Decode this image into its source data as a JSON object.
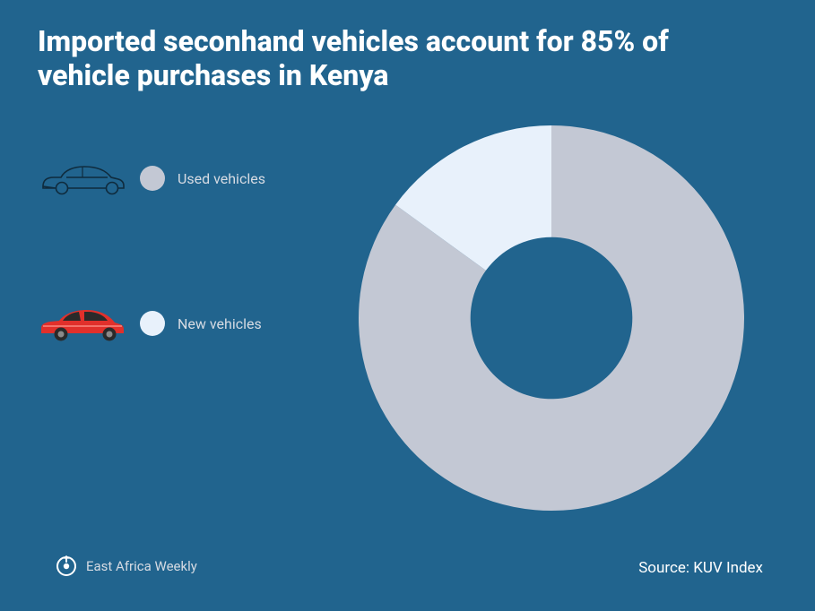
{
  "title": "Imported seconhand vehicles account for 85% of vehicle purchases in Kenya",
  "legend": {
    "used": {
      "label": "Used vehicles",
      "swatch_color": "#c3c8d4"
    },
    "new": {
      "label": "New vehicles",
      "swatch_color": "#e8f1fb"
    }
  },
  "chart": {
    "type": "donut",
    "background_color": "#21648e",
    "slices": [
      {
        "name": "used",
        "value": 85,
        "color": "#c3c8d4"
      },
      {
        "name": "new",
        "value": 15,
        "color": "#e8f1fb"
      }
    ],
    "inner_radius_pct": 42,
    "outer_radius_pct": 100,
    "start_angle_deg": 0
  },
  "car_icons": {
    "used_outline_color": "#0f2b3d",
    "new_body_color": "#e1302b",
    "new_dark_color": "#2a2a2a",
    "new_highlight_color": "#ff9a8f"
  },
  "footer": {
    "brand": "East Africa Weekly",
    "brand_logo_color": "#ffffff",
    "source": "Source: KUV Index"
  }
}
